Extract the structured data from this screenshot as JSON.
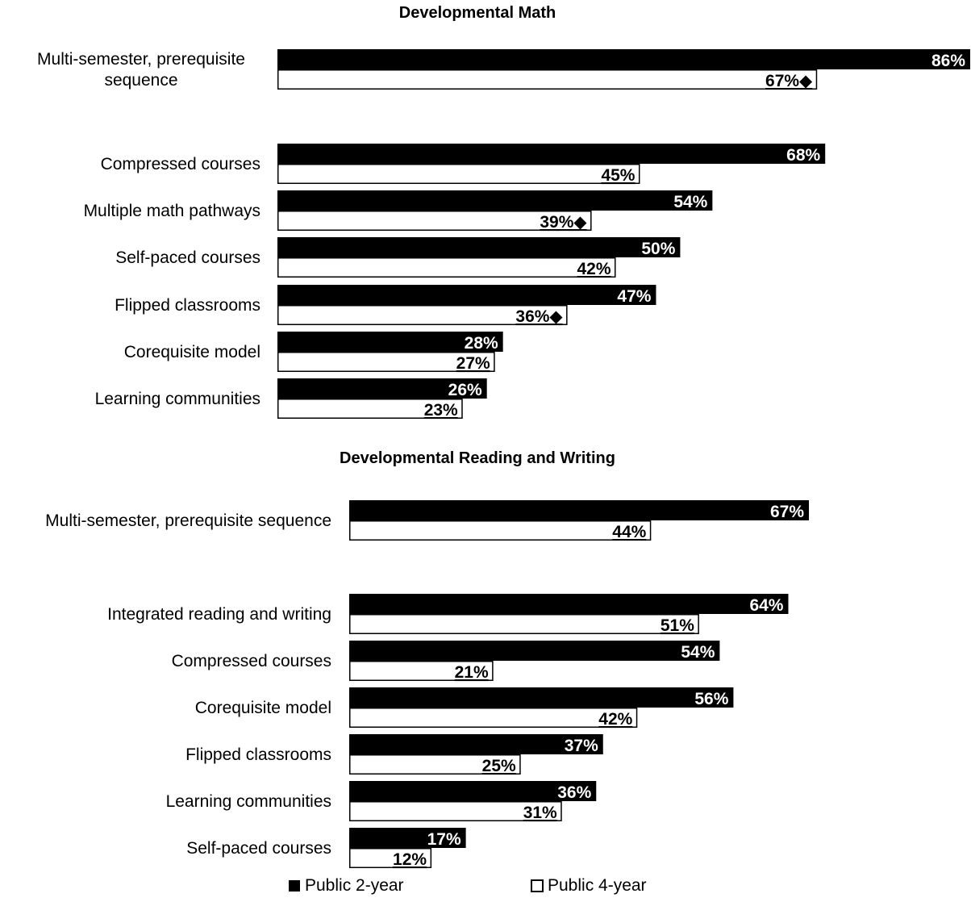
{
  "chart_data": [
    {
      "type": "bar",
      "orientation": "horizontal",
      "title": "Developmental Math",
      "categories": [
        "Multi-semester, prerequisite sequence",
        "Compressed courses",
        "Multiple math pathways",
        "Self-paced courses",
        "Flipped classrooms",
        "Corequisite model",
        "Learning communities"
      ],
      "series": [
        {
          "name": "Public 2-year",
          "values": [
            86,
            68,
            54,
            50,
            47,
            28,
            26
          ],
          "color": "#000000"
        },
        {
          "name": "Public 4-year",
          "values": [
            67,
            45,
            39,
            42,
            36,
            27,
            23
          ],
          "color": "#ffffff"
        }
      ],
      "value_labels": {
        "Public 2-year": [
          "86%",
          "68%",
          "54%",
          "50%",
          "47%",
          "28%",
          "26%"
        ],
        "Public 4-year": [
          "67%◆",
          "45%",
          "39%◆",
          "42%",
          "36%◆",
          "27%",
          "23%"
        ]
      },
      "xlim": [
        0,
        86
      ]
    },
    {
      "type": "bar",
      "orientation": "horizontal",
      "title": "Developmental Reading and Writing",
      "categories": [
        "Multi-semester, prerequisite sequence",
        "Integrated reading and writing",
        "Compressed courses",
        "Corequisite model",
        "Flipped classrooms",
        "Learning communities",
        "Self-paced courses"
      ],
      "series": [
        {
          "name": "Public 2-year",
          "values": [
            67,
            64,
            54,
            56,
            37,
            36,
            17
          ],
          "color": "#000000"
        },
        {
          "name": "Public 4-year",
          "values": [
            44,
            51,
            21,
            42,
            25,
            31,
            12
          ],
          "color": "#ffffff"
        }
      ],
      "value_labels": {
        "Public 2-year": [
          "67%",
          "64%",
          "54%",
          "56%",
          "37%",
          "36%",
          "17%"
        ],
        "Public 4-year": [
          "44%",
          "51%",
          "21%",
          "42%",
          "25%",
          "31%",
          "12%"
        ]
      },
      "xlim": [
        0,
        89
      ]
    }
  ],
  "legend": {
    "placement": "bottom",
    "items": [
      {
        "label": "Public 2-year",
        "icon": "filled-square-icon",
        "color": "#000000"
      },
      {
        "label": "Public 4-year",
        "icon": "hollow-square-icon",
        "color": "#ffffff"
      }
    ]
  }
}
